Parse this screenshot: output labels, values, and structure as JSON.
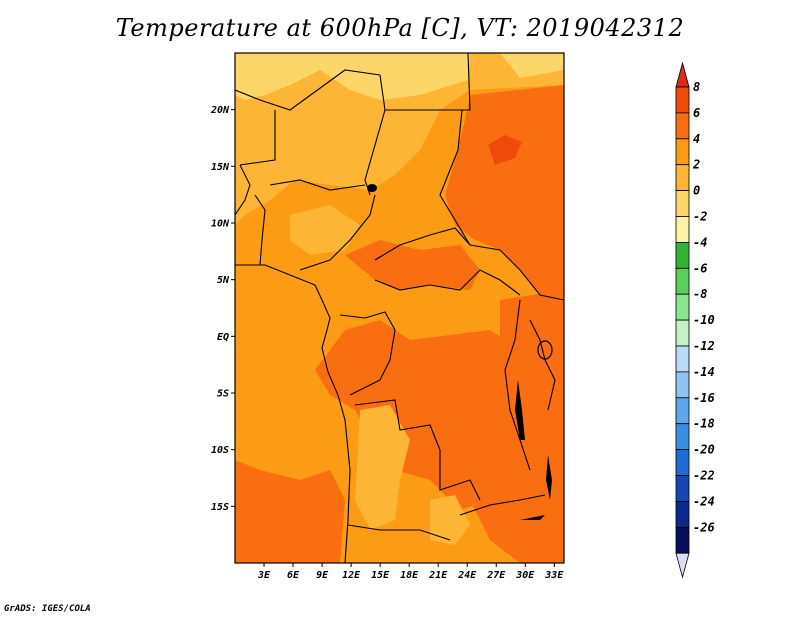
{
  "title": "Temperature at 600hPa [C], VT: 2019042312",
  "credit": "GrADS: IGES/COLA",
  "map": {
    "lon_range": [
      0,
      34
    ],
    "lat_range": [
      -20,
      25
    ],
    "lat_ticks": [
      {
        "value": 20,
        "label": "20N"
      },
      {
        "value": 15,
        "label": "15N"
      },
      {
        "value": 10,
        "label": "10N"
      },
      {
        "value": 5,
        "label": "5N"
      },
      {
        "value": 0,
        "label": "EQ"
      },
      {
        "value": -5,
        "label": "5S"
      },
      {
        "value": -10,
        "label": "10S"
      },
      {
        "value": -15,
        "label": "15S"
      }
    ],
    "lon_ticks": [
      {
        "value": 3,
        "label": "3E"
      },
      {
        "value": 6,
        "label": "6E"
      },
      {
        "value": 9,
        "label": "9E"
      },
      {
        "value": 12,
        "label": "12E"
      },
      {
        "value": 15,
        "label": "15E"
      },
      {
        "value": 18,
        "label": "18E"
      },
      {
        "value": 21,
        "label": "21E"
      },
      {
        "value": 24,
        "label": "24E"
      },
      {
        "value": 27,
        "label": "27E"
      },
      {
        "value": 30,
        "label": "30E"
      },
      {
        "value": 33,
        "label": "33E"
      }
    ]
  },
  "colorbar": {
    "labels": [
      "8",
      "6",
      "4",
      "2",
      "0",
      "-2",
      "-4",
      "-6",
      "-8",
      "-10",
      "-12",
      "-14",
      "-16",
      "-18",
      "-20",
      "-22",
      "-24",
      "-26"
    ],
    "colors": [
      "#dc2a14",
      "#f04a0a",
      "#fa6e12",
      "#fb9c14",
      "#fdb535",
      "#fdd66a",
      "#fcf3a8",
      "#32b432",
      "#5ad05a",
      "#8ae68a",
      "#c4f2c4",
      "#b6dcf6",
      "#8ec4f2",
      "#5ea8ea",
      "#3c8ee0",
      "#1e6cd6",
      "#1446b4",
      "#0c2a8c",
      "#08105c",
      "#dcdcf4"
    ]
  },
  "field_colors": {
    "level_0_2": "#fdd66a",
    "level_2_4": "#fdb535",
    "level_4_6": "#fb9c14",
    "level_6_8": "#fa6e12",
    "level_8_plus": "#f04a0a"
  }
}
